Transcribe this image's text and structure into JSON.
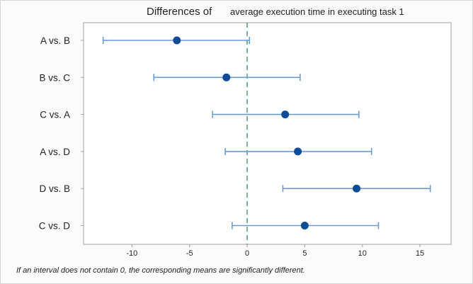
{
  "chart_data": {
    "type": "interval",
    "title": "Differences of   average execution time in executing task 1",
    "title_parts": [
      "Differences of",
      "average execution time in executing task 1"
    ],
    "xlabel": "",
    "ylabel": "",
    "xlim": [
      -14.2,
      17.7
    ],
    "xticks": [
      -10,
      -5,
      0,
      5,
      10,
      15
    ],
    "xtick_labels": [
      "-10",
      "-5",
      "0",
      "5",
      "10",
      "15"
    ],
    "reference_line": 0,
    "categories": [
      "A vs. B",
      "B vs. C",
      "C vs. A",
      "A vs. D",
      "D vs. B",
      "C vs. D"
    ],
    "estimates": [
      -6.1,
      -1.8,
      3.3,
      4.4,
      9.5,
      5.0
    ],
    "lower": [
      -12.5,
      -8.1,
      -3.0,
      -1.9,
      3.1,
      -1.3
    ],
    "upper": [
      0.2,
      4.6,
      9.7,
      10.8,
      15.9,
      11.4
    ],
    "footnote": "If an interval does not contain 0, the corresponding means are significantly different.",
    "colors": {
      "interval": "#6b9bd1",
      "point": "#0d4c96",
      "reference": "#3a8a5c",
      "axis": "#a0a0a0"
    }
  }
}
